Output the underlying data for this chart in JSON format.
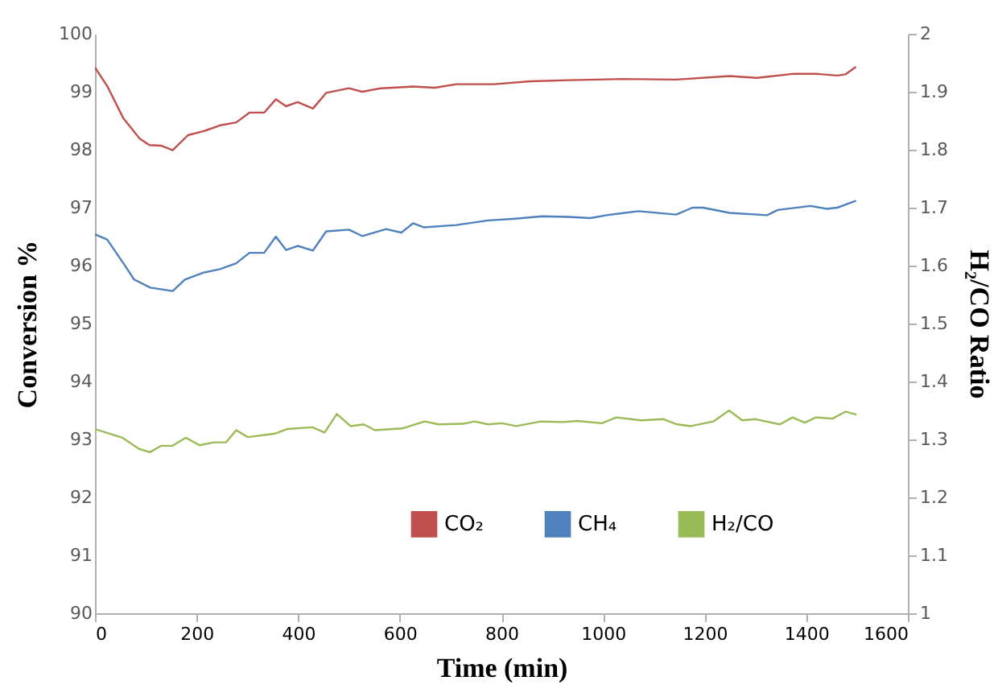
{
  "chart_data": {
    "type": "line",
    "xlabel": "Time (min)",
    "ylabel": "Conversion %",
    "y2label": "H₂/CO Ratio",
    "xlim": [
      0,
      1600
    ],
    "xticks": [
      0,
      200,
      400,
      600,
      800,
      1000,
      1200,
      1400,
      1600
    ],
    "ylim": [
      90,
      100
    ],
    "yticks": [
      90,
      91,
      92,
      93,
      94,
      95,
      96,
      97,
      98,
      99,
      100
    ],
    "y2lim": [
      1,
      2
    ],
    "y2ticks": [
      1,
      1.1,
      1.2,
      1.3,
      1.4,
      1.5,
      1.6,
      1.7,
      1.8,
      1.9,
      2
    ],
    "grid": false,
    "legend": "bottom",
    "marker": "none",
    "line_style": "solid",
    "series": [
      {
        "name": "CO₂",
        "color": "#c0504d",
        "x": [
          0,
          24,
          56,
          88,
          107,
          130,
          153,
          183,
          214,
          246,
          278,
          304,
          333,
          356,
          376,
          399,
          429,
          455,
          500,
          526,
          563,
          626,
          669,
          711,
          785,
          857,
          933,
          1038,
          1144,
          1249,
          1303,
          1376,
          1419,
          1461,
          1477,
          1498
        ],
        "values": [
          99.42,
          99.1,
          98.54,
          98.19,
          98.08,
          98.07,
          97.99,
          98.25,
          98.32,
          98.42,
          98.47,
          98.64,
          98.64,
          98.87,
          98.75,
          98.82,
          98.71,
          98.98,
          99.06,
          99.0,
          99.06,
          99.09,
          99.07,
          99.13,
          99.13,
          99.18,
          99.2,
          99.22,
          99.21,
          99.27,
          99.24,
          99.31,
          99.31,
          99.28,
          99.3,
          99.43
        ]
      },
      {
        "name": "CH₄",
        "color": "#4f81bd",
        "x": [
          0,
          24,
          56,
          77,
          109,
          153,
          177,
          214,
          246,
          278,
          304,
          333,
          356,
          376,
          399,
          429,
          455,
          500,
          526,
          573,
          603,
          626,
          647,
          711,
          774,
          827,
          880,
          933,
          975,
          1007,
          1070,
          1144,
          1176,
          1197,
          1249,
          1323,
          1344,
          1408,
          1440,
          1461,
          1498
        ],
        "values": [
          96.54,
          96.45,
          96.04,
          95.76,
          95.62,
          95.56,
          95.76,
          95.88,
          95.94,
          96.04,
          96.22,
          96.22,
          96.5,
          96.27,
          96.34,
          96.26,
          96.59,
          96.62,
          96.51,
          96.63,
          96.57,
          96.73,
          96.66,
          96.7,
          96.78,
          96.81,
          96.85,
          96.84,
          96.82,
          96.87,
          96.94,
          96.88,
          97.0,
          97.0,
          96.91,
          96.87,
          96.96,
          97.03,
          96.98,
          97.0,
          97.12
        ]
      },
      {
        "name": "H₂/CO",
        "color": "#9bbb59",
        "axis": "y2",
        "x": [
          0,
          54,
          86,
          108,
          130,
          152,
          179,
          206,
          234,
          258,
          278,
          301,
          354,
          378,
          428,
          452,
          476,
          503,
          529,
          551,
          605,
          649,
          676,
          725,
          747,
          774,
          801,
          829,
          878,
          922,
          949,
          998,
          1026,
          1075,
          1119,
          1146,
          1173,
          1217,
          1248,
          1274,
          1300,
          1348,
          1373,
          1397,
          1419,
          1452,
          1477,
          1499
        ],
        "values": [
          1.318,
          1.303,
          1.284,
          1.278,
          1.289,
          1.289,
          1.303,
          1.29,
          1.295,
          1.295,
          1.316,
          1.304,
          1.31,
          1.318,
          1.321,
          1.312,
          1.344,
          1.323,
          1.326,
          1.316,
          1.319,
          1.331,
          1.326,
          1.327,
          1.331,
          1.326,
          1.328,
          1.323,
          1.331,
          1.33,
          1.332,
          1.328,
          1.338,
          1.333,
          1.335,
          1.326,
          1.323,
          1.331,
          1.35,
          1.333,
          1.335,
          1.326,
          1.338,
          1.329,
          1.338,
          1.336,
          1.348,
          1.343
        ]
      }
    ]
  }
}
